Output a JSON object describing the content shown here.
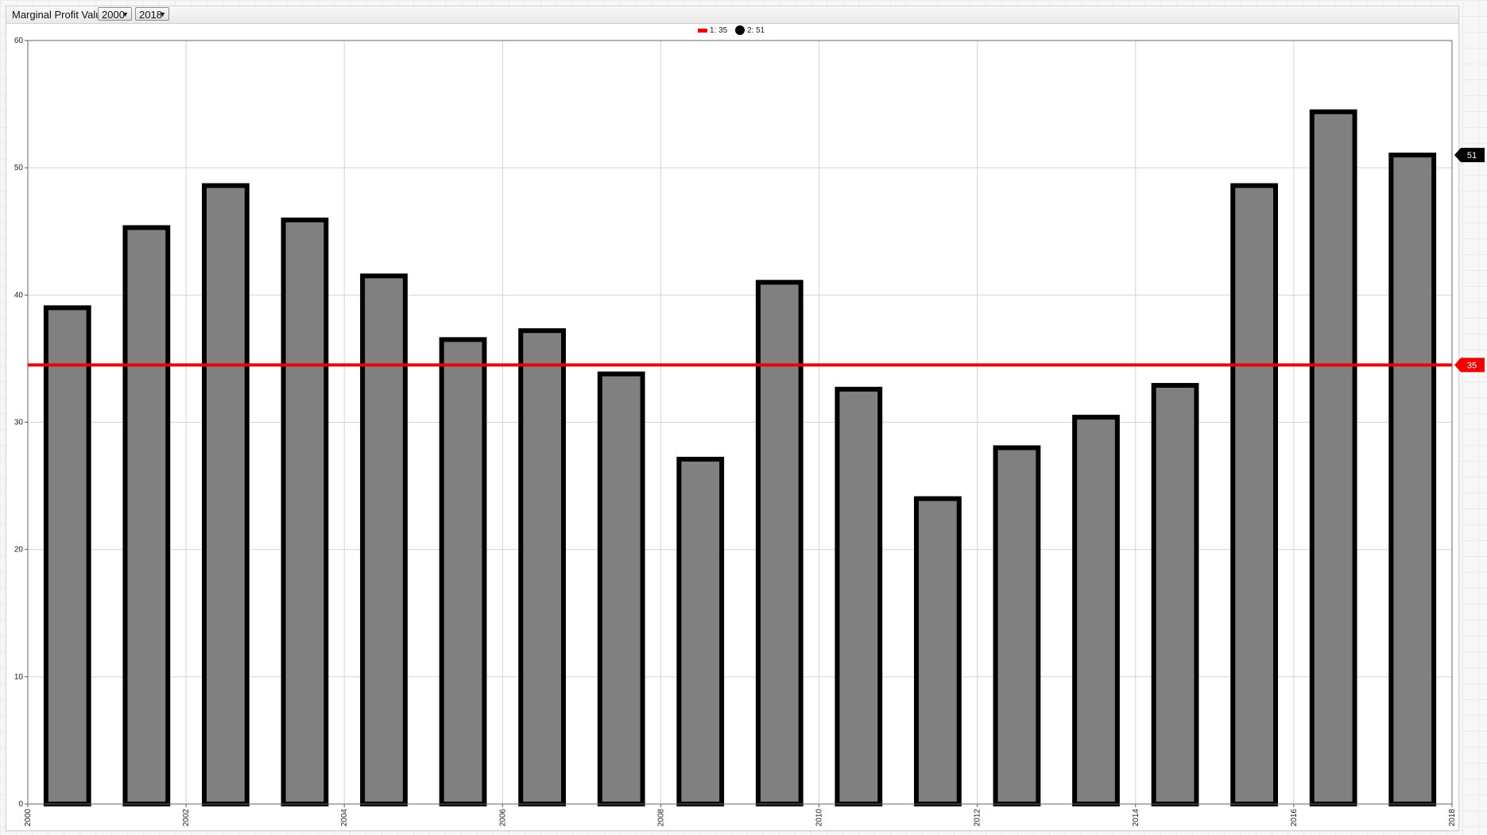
{
  "toolbar": {
    "title": "Marginal Profit Value",
    "from_year": "2000",
    "to_year": "2018"
  },
  "chart_data": {
    "type": "bar",
    "series": [
      {
        "name": "2",
        "legend_label": "2: 51",
        "color": "#808080",
        "outline": "#000000",
        "x": [
          2000.5,
          2001.5,
          2002.5,
          2003.5,
          2004.5,
          2005.5,
          2006.5,
          2007.5,
          2008.5,
          2009.5,
          2010.5,
          2011.5,
          2012.5,
          2013.5,
          2014.5,
          2015.5,
          2016.5,
          2017.5
        ],
        "values": [
          39.0,
          45.3,
          48.6,
          45.9,
          41.5,
          36.5,
          37.2,
          33.8,
          27.1,
          41.0,
          32.6,
          24.0,
          28.0,
          30.4,
          32.9,
          48.6,
          54.4,
          51.0
        ],
        "last_value_label": "51"
      }
    ],
    "reference_line": {
      "name": "1",
      "legend_label": "1: 35",
      "value": 34.5,
      "color": "#ee0000",
      "value_label": "35"
    },
    "x_ticks": [
      "2000",
      "2002",
      "2004",
      "2006",
      "2008",
      "2010",
      "2012",
      "2014",
      "2016",
      "2018"
    ],
    "x_tick_values": [
      2000,
      2002,
      2004,
      2006,
      2008,
      2010,
      2012,
      2014,
      2016,
      2018
    ],
    "y_ticks": [
      "0",
      "10",
      "20",
      "30",
      "40",
      "50",
      "60"
    ],
    "y_tick_values": [
      0,
      10,
      20,
      30,
      40,
      50,
      60
    ],
    "xlim": [
      2000,
      2018
    ],
    "ylim": [
      0,
      60
    ],
    "grid": true,
    "legend_position": "top-center",
    "xlabel": "",
    "ylabel": "",
    "title": ""
  }
}
